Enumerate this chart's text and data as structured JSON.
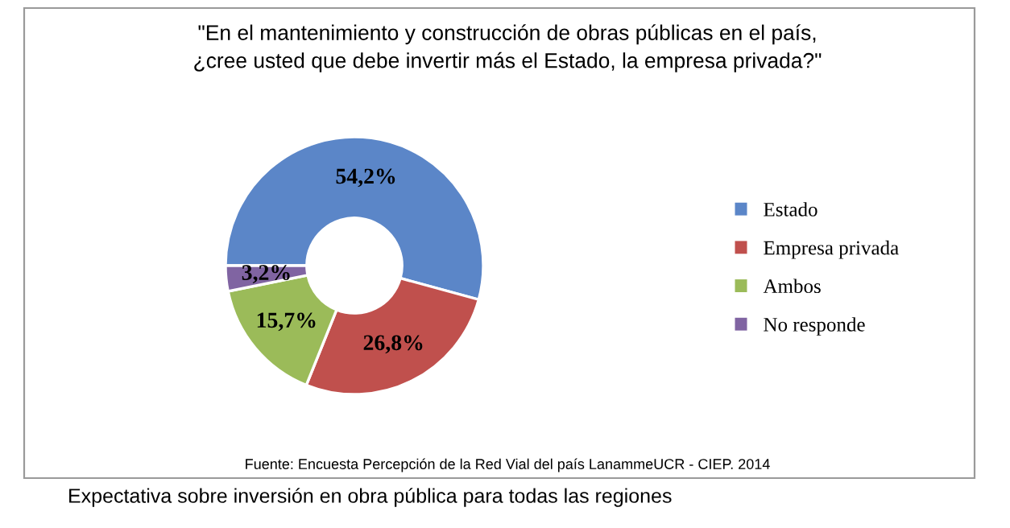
{
  "chart_data": {
    "type": "donut",
    "title": "\"En el mantenimiento y construcción de obras públicas en el país,\n¿cree usted que debe invertir más el Estado, la empresa privada?\"",
    "categories": [
      "Estado",
      "Empresa privada",
      "Ambos",
      "No responde"
    ],
    "values": [
      54.2,
      26.8,
      15.7,
      3.2
    ],
    "colors": [
      "#5b86c8",
      "#c0504d",
      "#9bbb59",
      "#8064a2"
    ],
    "value_labels": [
      "54,2%",
      "26,8%",
      "15,7%",
      "3,2%"
    ],
    "legend": "right",
    "annotations": [
      "Fuente: Encuesta Percepción de la Red Vial del país LanammeUCR - CIEP. 2014",
      "Expectativa sobre inversión en obra pública para todas las regiones"
    ]
  }
}
